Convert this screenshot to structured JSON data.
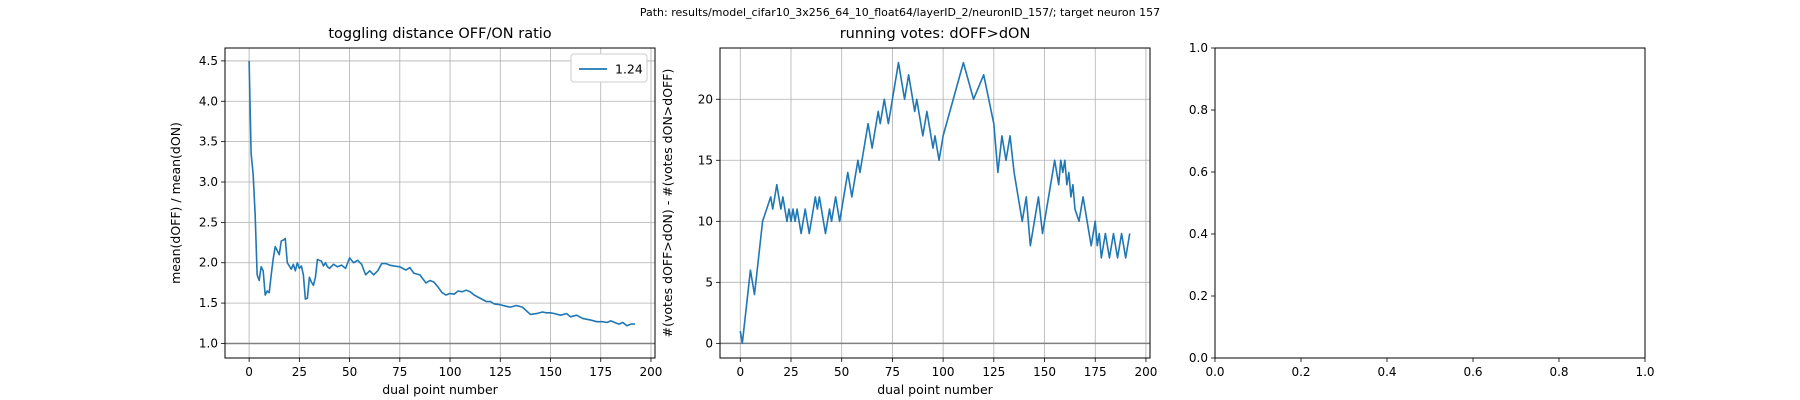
{
  "suptitle": "Path: results/model_cifar10_3x256_64_10_float64/layerID_2/neuronID_157/; target neuron 157",
  "chart_data": [
    {
      "type": "line",
      "title": "toggling distance OFF/ON ratio",
      "xlabel": "dual point number",
      "ylabel": "mean(dOFF) / mean(dON)",
      "xlim": [
        -12,
        202
      ],
      "ylim": [
        0.82,
        4.66
      ],
      "xticks": [
        0,
        25,
        50,
        75,
        100,
        125,
        150,
        175,
        200
      ],
      "yticks": [
        1.0,
        1.5,
        2.0,
        2.5,
        3.0,
        3.5,
        4.0,
        4.5
      ],
      "ytick_labels": [
        "1.0",
        "1.5",
        "2.0",
        "2.5",
        "3.0",
        "3.5",
        "4.0",
        "4.5"
      ],
      "grid": true,
      "hline": 1.0,
      "legend": {
        "placement": "top-right",
        "entries": [
          "1.24"
        ]
      },
      "color": "#1f77b4",
      "series": [
        {
          "name": "1.24",
          "x": [
            0,
            1,
            2,
            3,
            4,
            5,
            6,
            7,
            8,
            9,
            10,
            11,
            12,
            13,
            14,
            15,
            16,
            17,
            18,
            19,
            20,
            21,
            22,
            23,
            24,
            25,
            26,
            27,
            28,
            29,
            30,
            31,
            32,
            33,
            34,
            35,
            36,
            37,
            38,
            39,
            40,
            42,
            44,
            46,
            48,
            50,
            52,
            54,
            56,
            58,
            60,
            62,
            64,
            66,
            68,
            70,
            72,
            75,
            78,
            80,
            82,
            85,
            88,
            90,
            92,
            94,
            96,
            98,
            100,
            102,
            104,
            106,
            108,
            110,
            112,
            115,
            118,
            120,
            122,
            125,
            128,
            130,
            133,
            136,
            140,
            143,
            146,
            148,
            150,
            152,
            155,
            158,
            160,
            163,
            166,
            170,
            173,
            176,
            178,
            180,
            182,
            184,
            186,
            188,
            190,
            192
          ],
          "values": [
            4.5,
            3.35,
            3.1,
            2.6,
            1.85,
            1.78,
            1.95,
            1.9,
            1.6,
            1.65,
            1.63,
            1.85,
            2.05,
            2.2,
            2.15,
            2.1,
            2.27,
            2.28,
            2.3,
            2.0,
            1.96,
            1.92,
            1.98,
            1.9,
            2.0,
            1.93,
            1.96,
            1.85,
            1.55,
            1.56,
            1.82,
            1.76,
            1.72,
            1.82,
            2.04,
            2.03,
            2.02,
            1.96,
            2.0,
            1.95,
            1.93,
            1.98,
            1.95,
            1.97,
            1.93,
            2.06,
            2.0,
            2.03,
            1.98,
            1.85,
            1.9,
            1.85,
            1.9,
            1.99,
            1.99,
            1.97,
            1.96,
            1.95,
            1.91,
            1.94,
            1.87,
            1.85,
            1.75,
            1.78,
            1.76,
            1.7,
            1.63,
            1.6,
            1.62,
            1.61,
            1.65,
            1.64,
            1.66,
            1.64,
            1.6,
            1.56,
            1.52,
            1.52,
            1.49,
            1.48,
            1.46,
            1.45,
            1.47,
            1.45,
            1.36,
            1.37,
            1.39,
            1.38,
            1.38,
            1.37,
            1.35,
            1.37,
            1.33,
            1.35,
            1.31,
            1.29,
            1.27,
            1.27,
            1.26,
            1.28,
            1.26,
            1.24,
            1.26,
            1.22,
            1.24,
            1.24
          ]
        }
      ]
    },
    {
      "type": "line",
      "title": "running votes: dOFF>dON",
      "xlabel": "dual point number",
      "ylabel": "#(votes dOFF>dON) - #(votes dON>dOFF)",
      "xlim": [
        -10,
        202
      ],
      "ylim": [
        -1.2,
        24.2
      ],
      "xticks": [
        0,
        25,
        50,
        75,
        100,
        125,
        150,
        175,
        200
      ],
      "yticks": [
        0,
        5,
        10,
        15,
        20
      ],
      "ytick_labels": [
        "0",
        "5",
        "10",
        "15",
        "20"
      ],
      "grid": true,
      "hline": 0,
      "color": "#1f77b4",
      "series": [
        {
          "x": [
            0,
            1,
            3,
            5,
            7,
            9,
            11,
            13,
            15,
            16,
            17,
            18,
            19,
            20,
            21,
            22,
            23,
            24,
            25,
            26,
            27,
            28,
            29,
            30,
            31,
            32,
            33,
            34,
            35,
            36,
            37,
            38,
            39,
            40,
            41,
            42,
            43,
            44,
            45,
            46,
            47,
            48,
            49,
            50,
            51,
            52,
            53,
            54,
            55,
            56,
            57,
            58,
            59,
            60,
            61,
            62,
            63,
            64,
            65,
            66,
            67,
            68,
            69,
            70,
            71,
            72,
            73,
            74,
            75,
            76,
            77,
            78,
            79,
            80,
            81,
            82,
            83,
            84,
            85,
            86,
            87,
            88,
            89,
            90,
            91,
            92,
            93,
            94,
            95,
            96,
            97,
            98,
            99,
            100,
            105,
            110,
            115,
            120,
            125,
            127,
            129,
            131,
            133,
            135,
            137,
            139,
            141,
            143,
            145,
            147,
            149,
            151,
            153,
            155,
            157,
            158,
            159,
            160,
            161,
            162,
            163,
            164,
            165,
            167,
            169,
            171,
            173,
            175,
            176,
            177,
            178,
            179,
            180,
            181,
            182,
            183,
            184,
            185,
            186,
            187,
            188,
            189,
            190,
            191,
            192
          ],
          "values": [
            1,
            0,
            3,
            6,
            4,
            7,
            10,
            11,
            12,
            11,
            12,
            13,
            12,
            11,
            12,
            11,
            10,
            11,
            10,
            11,
            10,
            11,
            10,
            9,
            10,
            11,
            10,
            9,
            10,
            11,
            12,
            11,
            12,
            11,
            10,
            9,
            10,
            11,
            10,
            11,
            12,
            11,
            10,
            11,
            12,
            13,
            14,
            13,
            12,
            13,
            14,
            15,
            14,
            15,
            16,
            17,
            18,
            17,
            16,
            17,
            18,
            19,
            18,
            19,
            20,
            19,
            18,
            19,
            20,
            21,
            22,
            23,
            22,
            21,
            20,
            21,
            22,
            21,
            20,
            19,
            20,
            19,
            18,
            17,
            18,
            19,
            18,
            17,
            16,
            17,
            16,
            15,
            16,
            17,
            20,
            23,
            20,
            22,
            18,
            14,
            17,
            15,
            17,
            14,
            12,
            10,
            12,
            8,
            10,
            12,
            9,
            11,
            13,
            15,
            13,
            15,
            14,
            15,
            13,
            14,
            12,
            13,
            11,
            10,
            12,
            10,
            8,
            10,
            8,
            9,
            7,
            8,
            9,
            8,
            7,
            8,
            9,
            8,
            7,
            8,
            9,
            8,
            7,
            8,
            9
          ]
        }
      ]
    },
    {
      "type": "line",
      "title": "",
      "xlabel": "",
      "ylabel": "",
      "xlim": [
        0,
        1
      ],
      "ylim": [
        0,
        1
      ],
      "xticks": [
        0.0,
        0.2,
        0.4,
        0.6,
        0.8,
        1.0
      ],
      "xtick_labels": [
        "0.0",
        "0.2",
        "0.4",
        "0.6",
        "0.8",
        "1.0"
      ],
      "yticks": [
        0.0,
        0.2,
        0.4,
        0.6,
        0.8,
        1.0
      ],
      "ytick_labels": [
        "0.0",
        "0.2",
        "0.4",
        "0.6",
        "0.8",
        "1.0"
      ],
      "grid": false,
      "series": []
    }
  ]
}
